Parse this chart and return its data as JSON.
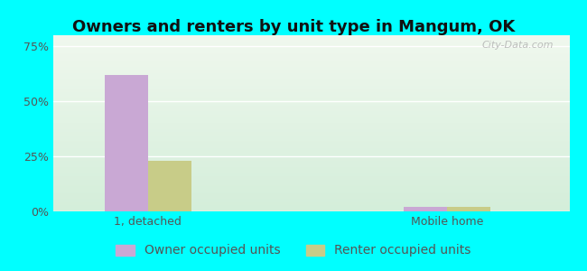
{
  "title": "Owners and renters by unit type in Mangum, OK",
  "categories": [
    "1, detached",
    "Mobile home"
  ],
  "owner_values": [
    62,
    2
  ],
  "renter_values": [
    23,
    2
  ],
  "owner_color": "#c9a8d4",
  "renter_color": "#c8cc88",
  "background_outer": "#00ffff",
  "bg_top": "#f0f8ee",
  "bg_bottom": "#d4eeda",
  "yticks": [
    0,
    25,
    50,
    75
  ],
  "ylim": [
    0,
    80
  ],
  "bar_width": 0.32,
  "x_positions": [
    1.0,
    3.2
  ],
  "xlim": [
    0.3,
    4.1
  ],
  "legend_labels": [
    "Owner occupied units",
    "Renter occupied units"
  ],
  "watermark": "City-Data.com",
  "title_fontsize": 13,
  "tick_fontsize": 9,
  "legend_fontsize": 10
}
